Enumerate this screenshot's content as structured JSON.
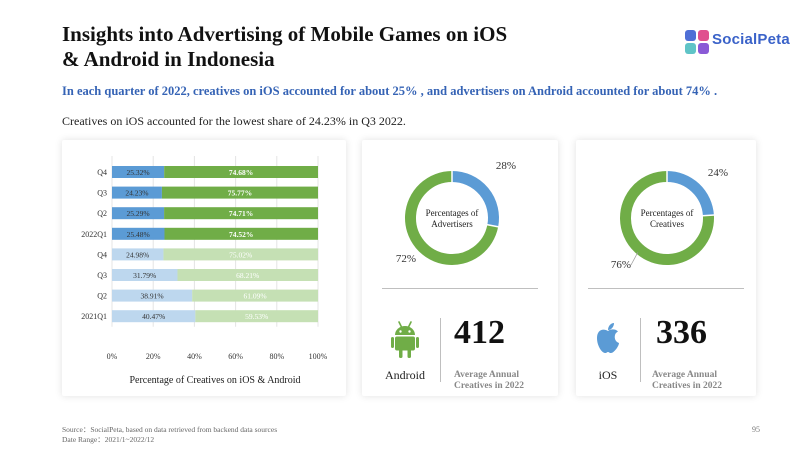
{
  "header": {
    "title_line1": "Insights into Advertising of Mobile Games on iOS",
    "title_line2": "& Android in Indonesia",
    "subtitle": "In each quarter of 2022, creatives on iOS accounted for about 25% , and advertisers on Android accounted for about 74% .",
    "note": "Creatives on iOS accounted for the lowest share of 24.23% in Q3 2022."
  },
  "logo": {
    "text": "SocialPeta",
    "icon": "socialpeta-logo-icon"
  },
  "colors": {
    "ios_2022": "#5b9bd5",
    "android_2022": "#70ad47",
    "ios_2021": "#bdd7ee",
    "android_2021": "#c5e0b4",
    "text_2021": "#ffffff"
  },
  "chart_data": [
    {
      "type": "bar",
      "orientation": "horizontal-stacked-100",
      "title": "Percentage of Creatives on iOS & Android",
      "categories": [
        "Q4",
        "Q3",
        "Q2",
        "2022Q1",
        "Q4",
        "Q3",
        "Q2",
        "2021Q1"
      ],
      "series": [
        {
          "values": [
            25.32,
            24.23,
            25.29,
            25.48,
            24.98,
            31.79,
            38.91,
            40.47
          ],
          "labels": [
            "25.32%",
            "24.23%",
            "25.29%",
            "25.48%",
            "24.98%",
            "31.79%",
            "38.91%",
            "40.47%"
          ]
        },
        {
          "values": [
            74.68,
            75.77,
            74.71,
            74.52,
            75.02,
            68.21,
            61.09,
            59.53
          ],
          "labels": [
            "74.68%",
            "75.77%",
            "74.71%",
            "74.52%",
            "75.02%",
            "68.21%",
            "61.09%",
            "59.53%"
          ]
        }
      ],
      "xticks": [
        "0%",
        "20%",
        "40%",
        "60%",
        "80%",
        "100%"
      ],
      "xlim": [
        0,
        100
      ],
      "grid": true
    },
    {
      "type": "pie",
      "variant": "donut",
      "title": "Percentages of Advertisers",
      "values": [
        28,
        72
      ],
      "labels": [
        "28%",
        "72%"
      ],
      "colors": [
        "#5b9bd5",
        "#70ad47"
      ]
    },
    {
      "type": "pie",
      "variant": "donut",
      "title": "Percentages of Creatives",
      "values": [
        24,
        76
      ],
      "labels": [
        "24%",
        "76%"
      ],
      "colors": [
        "#5b9bd5",
        "#70ad47"
      ]
    }
  ],
  "stats": {
    "android": {
      "platform": "Android",
      "icon": "android-icon",
      "value": "412",
      "caption_line1": "Average Annual",
      "caption_line2": "Creatives in 2022",
      "color": "#70ad47"
    },
    "ios": {
      "platform": "iOS",
      "icon": "apple-icon",
      "value": "336",
      "caption_line1": "Average Annual",
      "caption_line2": "Creatives in 2022",
      "color": "#5b9bd5"
    }
  },
  "footer": {
    "source": "Source：SocialPeta, based on data retrieved from backend data sources",
    "date_range": "Date Range：2021/1~2022/12",
    "page_number": "95"
  }
}
